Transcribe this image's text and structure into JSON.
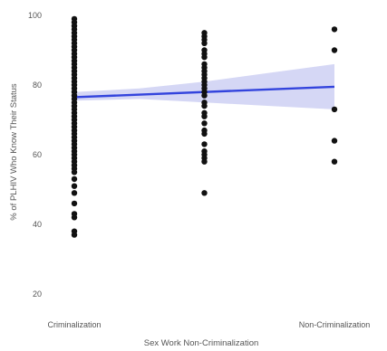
{
  "chart_data": {
    "type": "scatter",
    "title": "",
    "xlabel": "Sex Work Non-Criminalization",
    "ylabel": "% of PLHIV Who Know Their Status",
    "categories": [
      "Criminalization",
      "",
      "Non-Criminalization"
    ],
    "ylim": [
      18,
      100
    ],
    "yticks": [
      20,
      40,
      60,
      80,
      100
    ],
    "grid": false,
    "legend": "none",
    "colors": {
      "points": "#111111",
      "line": "#3344dd",
      "band": "#c7caf2"
    },
    "points": [
      {
        "x": 0,
        "y": 99
      },
      {
        "x": 0,
        "y": 98
      },
      {
        "x": 0,
        "y": 97
      },
      {
        "x": 0,
        "y": 96
      },
      {
        "x": 0,
        "y": 95
      },
      {
        "x": 0,
        "y": 94
      },
      {
        "x": 0,
        "y": 93
      },
      {
        "x": 0,
        "y": 92
      },
      {
        "x": 0,
        "y": 91
      },
      {
        "x": 0,
        "y": 90
      },
      {
        "x": 0,
        "y": 89
      },
      {
        "x": 0,
        "y": 88
      },
      {
        "x": 0,
        "y": 87
      },
      {
        "x": 0,
        "y": 86
      },
      {
        "x": 0,
        "y": 85
      },
      {
        "x": 0,
        "y": 84
      },
      {
        "x": 0,
        "y": 83
      },
      {
        "x": 0,
        "y": 82
      },
      {
        "x": 0,
        "y": 81
      },
      {
        "x": 0,
        "y": 80
      },
      {
        "x": 0,
        "y": 79
      },
      {
        "x": 0,
        "y": 78
      },
      {
        "x": 0,
        "y": 77
      },
      {
        "x": 0,
        "y": 76
      },
      {
        "x": 0,
        "y": 75
      },
      {
        "x": 0,
        "y": 74
      },
      {
        "x": 0,
        "y": 73
      },
      {
        "x": 0,
        "y": 72
      },
      {
        "x": 0,
        "y": 71
      },
      {
        "x": 0,
        "y": 70
      },
      {
        "x": 0,
        "y": 69
      },
      {
        "x": 0,
        "y": 68
      },
      {
        "x": 0,
        "y": 67
      },
      {
        "x": 0,
        "y": 66
      },
      {
        "x": 0,
        "y": 65
      },
      {
        "x": 0,
        "y": 64
      },
      {
        "x": 0,
        "y": 63
      },
      {
        "x": 0,
        "y": 62
      },
      {
        "x": 0,
        "y": 61
      },
      {
        "x": 0,
        "y": 60
      },
      {
        "x": 0,
        "y": 59
      },
      {
        "x": 0,
        "y": 58
      },
      {
        "x": 0,
        "y": 57
      },
      {
        "x": 0,
        "y": 56
      },
      {
        "x": 0,
        "y": 55
      },
      {
        "x": 0,
        "y": 53
      },
      {
        "x": 0,
        "y": 51
      },
      {
        "x": 0,
        "y": 49
      },
      {
        "x": 0,
        "y": 46
      },
      {
        "x": 0,
        "y": 43
      },
      {
        "x": 0,
        "y": 42
      },
      {
        "x": 0,
        "y": 38
      },
      {
        "x": 0,
        "y": 37
      },
      {
        "x": 0.5,
        "y": 95
      },
      {
        "x": 0.5,
        "y": 94
      },
      {
        "x": 0.5,
        "y": 93
      },
      {
        "x": 0.5,
        "y": 92
      },
      {
        "x": 0.5,
        "y": 90
      },
      {
        "x": 0.5,
        "y": 89
      },
      {
        "x": 0.5,
        "y": 88
      },
      {
        "x": 0.5,
        "y": 86
      },
      {
        "x": 0.5,
        "y": 85
      },
      {
        "x": 0.5,
        "y": 84
      },
      {
        "x": 0.5,
        "y": 83
      },
      {
        "x": 0.5,
        "y": 82
      },
      {
        "x": 0.5,
        "y": 81
      },
      {
        "x": 0.5,
        "y": 80
      },
      {
        "x": 0.5,
        "y": 79
      },
      {
        "x": 0.5,
        "y": 78
      },
      {
        "x": 0.5,
        "y": 77
      },
      {
        "x": 0.5,
        "y": 75
      },
      {
        "x": 0.5,
        "y": 74
      },
      {
        "x": 0.5,
        "y": 72
      },
      {
        "x": 0.5,
        "y": 71
      },
      {
        "x": 0.5,
        "y": 69
      },
      {
        "x": 0.5,
        "y": 67
      },
      {
        "x": 0.5,
        "y": 66
      },
      {
        "x": 0.5,
        "y": 63
      },
      {
        "x": 0.5,
        "y": 61
      },
      {
        "x": 0.5,
        "y": 60
      },
      {
        "x": 0.5,
        "y": 59
      },
      {
        "x": 0.5,
        "y": 58
      },
      {
        "x": 0.5,
        "y": 49
      },
      {
        "x": 1,
        "y": 96
      },
      {
        "x": 1,
        "y": 90
      },
      {
        "x": 1,
        "y": 73
      },
      {
        "x": 1,
        "y": 64
      },
      {
        "x": 1,
        "y": 58
      }
    ],
    "trend": {
      "x": [
        0,
        1
      ],
      "y": [
        76.5,
        79.5
      ]
    },
    "band": {
      "x": [
        0,
        0.25,
        0.5,
        0.75,
        1
      ],
      "lower": [
        75.5,
        76,
        75,
        74,
        73
      ],
      "upper": [
        78,
        79,
        81,
        83.5,
        86
      ]
    }
  }
}
